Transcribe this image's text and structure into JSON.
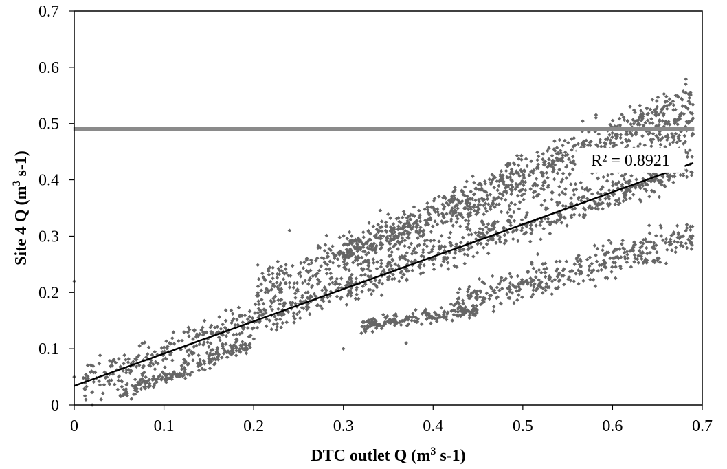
{
  "chart_data": {
    "type": "scatter",
    "xlabel": {
      "prefix": "DTC outlet Q (m",
      "sup": "3",
      "suffix": " s-1)"
    },
    "ylabel": {
      "prefix": "Site 4 Q (m",
      "sup": "3",
      "suffix": " s-1)"
    },
    "xlim": [
      0,
      0.7
    ],
    "ylim": [
      0,
      0.7
    ],
    "xticks": [
      "0",
      "0.1",
      "0.2",
      "0.3",
      "0.4",
      "0.5",
      "0.6",
      "0.7"
    ],
    "yticks": [
      "0",
      "0.1",
      "0.2",
      "0.3",
      "0.4",
      "0.5",
      "0.6",
      "0.7"
    ],
    "grid": false,
    "legend": "none",
    "colors": {
      "points": "#666666",
      "trendline": "#000000",
      "plateau": "#8a8a8a"
    },
    "series": [
      {
        "marker": "diamond",
        "density_description": "dense point cloud; bands listed as [x_start, x_end, y_at_start, y_at_end, spread]",
        "bands": [
          [
            0.01,
            0.69,
            0.04,
            0.43,
            0.03
          ],
          [
            0.2,
            0.69,
            0.2,
            0.5,
            0.04
          ],
          [
            0.3,
            0.69,
            0.27,
            0.55,
            0.03
          ],
          [
            0.05,
            0.2,
            0.02,
            0.11,
            0.015
          ],
          [
            0.32,
            0.45,
            0.14,
            0.17,
            0.012
          ],
          [
            0.42,
            0.69,
            0.18,
            0.3,
            0.03
          ]
        ],
        "plateau_y": 0.49,
        "plateau_x_range": [
          0.0,
          0.69
        ],
        "outliers": [
          [
            0.0,
            0.22
          ],
          [
            0.0,
            0.05
          ],
          [
            0.24,
            0.31
          ],
          [
            0.37,
            0.11
          ],
          [
            0.3,
            0.1
          ],
          [
            0.02,
            0.0
          ],
          [
            0.03,
            0.01
          ]
        ]
      }
    ],
    "trendline": {
      "type": "linear",
      "x": [
        0.0,
        0.69
      ],
      "y": [
        0.034,
        0.43
      ]
    },
    "annotations": [
      {
        "text": "R² = 0.8921",
        "x": 0.62,
        "y": 0.435
      }
    ]
  }
}
